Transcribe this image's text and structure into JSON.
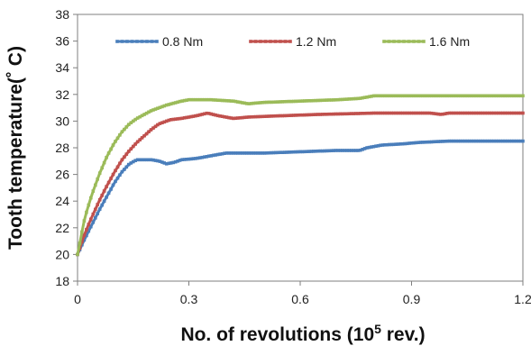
{
  "chart_data": {
    "type": "line",
    "xlabel": {
      "main": "No. of revolutions (10",
      "sup": "5",
      "tail": " rev.)"
    },
    "ylabel": "Tooth temperature(˚ C)",
    "xlim": [
      0,
      1.2
    ],
    "ylim": [
      18,
      38
    ],
    "x_ticks": [
      0,
      0.3,
      0.6,
      0.9,
      1.2
    ],
    "x_tick_labels": [
      "0",
      "0.3",
      "0.6",
      "0.9",
      "1.2"
    ],
    "y_ticks": [
      18,
      20,
      22,
      24,
      26,
      28,
      30,
      32,
      34,
      36,
      38
    ],
    "y_tick_labels": [
      "18",
      "20",
      "22",
      "24",
      "26",
      "28",
      "30",
      "32",
      "34",
      "36",
      "38"
    ],
    "grid": false,
    "legend_position": "top",
    "series": [
      {
        "name": "0.8 Nm",
        "color": "#4A7EBB",
        "points": [
          [
            0,
            20.0
          ],
          [
            0.02,
            21.2
          ],
          [
            0.04,
            22.3
          ],
          [
            0.06,
            23.4
          ],
          [
            0.08,
            24.4
          ],
          [
            0.1,
            25.4
          ],
          [
            0.12,
            26.2
          ],
          [
            0.14,
            26.8
          ],
          [
            0.16,
            27.1
          ],
          [
            0.2,
            27.1
          ],
          [
            0.22,
            27.0
          ],
          [
            0.24,
            26.8
          ],
          [
            0.26,
            26.9
          ],
          [
            0.28,
            27.1
          ],
          [
            0.32,
            27.2
          ],
          [
            0.36,
            27.4
          ],
          [
            0.4,
            27.6
          ],
          [
            0.5,
            27.6
          ],
          [
            0.6,
            27.7
          ],
          [
            0.7,
            27.8
          ],
          [
            0.76,
            27.8
          ],
          [
            0.78,
            28.0
          ],
          [
            0.82,
            28.2
          ],
          [
            0.88,
            28.3
          ],
          [
            0.92,
            28.4
          ],
          [
            1.0,
            28.5
          ],
          [
            1.2,
            28.5
          ]
        ]
      },
      {
        "name": "1.2 Nm",
        "color": "#C0504D",
        "points": [
          [
            0,
            20.0
          ],
          [
            0.02,
            21.6
          ],
          [
            0.04,
            22.9
          ],
          [
            0.06,
            24.1
          ],
          [
            0.08,
            25.2
          ],
          [
            0.1,
            26.2
          ],
          [
            0.12,
            27.1
          ],
          [
            0.14,
            27.8
          ],
          [
            0.16,
            28.4
          ],
          [
            0.18,
            28.9
          ],
          [
            0.2,
            29.4
          ],
          [
            0.22,
            29.8
          ],
          [
            0.25,
            30.1
          ],
          [
            0.28,
            30.2
          ],
          [
            0.32,
            30.4
          ],
          [
            0.35,
            30.6
          ],
          [
            0.38,
            30.4
          ],
          [
            0.42,
            30.2
          ],
          [
            0.46,
            30.3
          ],
          [
            0.55,
            30.4
          ],
          [
            0.65,
            30.5
          ],
          [
            0.8,
            30.6
          ],
          [
            0.95,
            30.6
          ],
          [
            0.98,
            30.5
          ],
          [
            1.0,
            30.6
          ],
          [
            1.2,
            30.6
          ]
        ]
      },
      {
        "name": "1.6 Nm",
        "color": "#9BBB59",
        "points": [
          [
            0,
            20.0
          ],
          [
            0.02,
            22.8
          ],
          [
            0.04,
            24.6
          ],
          [
            0.06,
            26.1
          ],
          [
            0.08,
            27.4
          ],
          [
            0.1,
            28.4
          ],
          [
            0.12,
            29.2
          ],
          [
            0.14,
            29.8
          ],
          [
            0.16,
            30.2
          ],
          [
            0.18,
            30.5
          ],
          [
            0.2,
            30.8
          ],
          [
            0.24,
            31.2
          ],
          [
            0.28,
            31.5
          ],
          [
            0.3,
            31.6
          ],
          [
            0.36,
            31.6
          ],
          [
            0.42,
            31.5
          ],
          [
            0.46,
            31.3
          ],
          [
            0.5,
            31.4
          ],
          [
            0.6,
            31.5
          ],
          [
            0.7,
            31.6
          ],
          [
            0.76,
            31.7
          ],
          [
            0.8,
            31.9
          ],
          [
            0.9,
            31.9
          ],
          [
            1.0,
            31.9
          ],
          [
            1.2,
            31.9
          ]
        ]
      }
    ]
  }
}
